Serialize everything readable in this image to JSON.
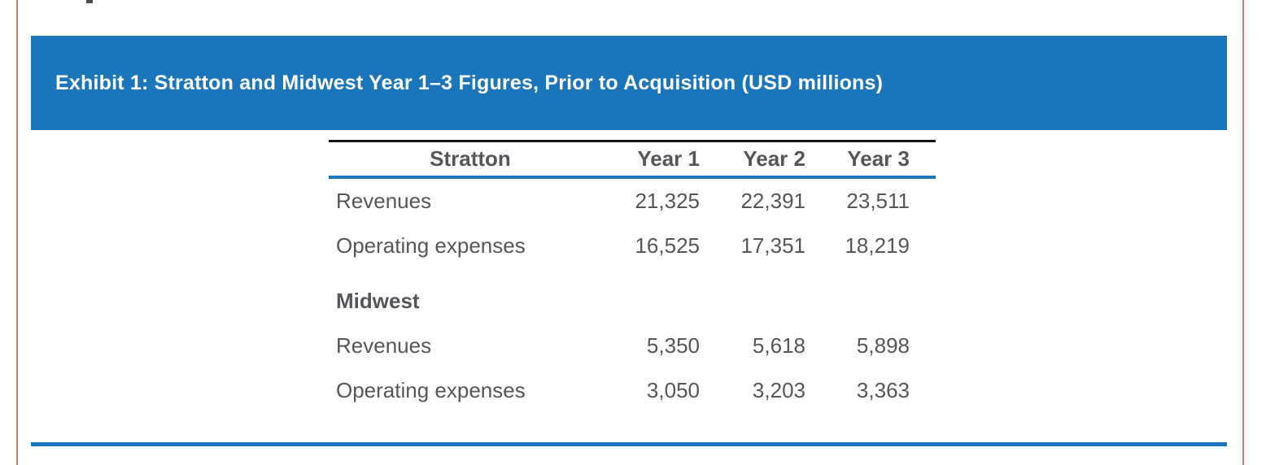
{
  "page": {
    "side_border_color": "#c9806f",
    "accent_blue": "#1b75bb",
    "text_gray": "#54565a"
  },
  "header": {
    "title": "Exhibit 1: Stratton and Midwest Year 1–3 Figures, Prior to Acquisition (USD millions)"
  },
  "table": {
    "columns": [
      "Stratton",
      "Year 1",
      "Year 2",
      "Year 3"
    ],
    "sections": [
      {
        "name": "Stratton",
        "rows": [
          {
            "label": "Revenues",
            "values": [
              "21,325",
              "22,391",
              "23,511"
            ]
          },
          {
            "label": "Operating expenses",
            "values": [
              "16,525",
              "17,351",
              "18,219"
            ]
          }
        ]
      },
      {
        "name": "Midwest",
        "rows": [
          {
            "label": "Revenues",
            "values": [
              "5,350",
              "5,618",
              "5,898"
            ]
          },
          {
            "label": "Operating expenses",
            "values": [
              "3,050",
              "3,203",
              "3,363"
            ]
          }
        ]
      }
    ]
  }
}
